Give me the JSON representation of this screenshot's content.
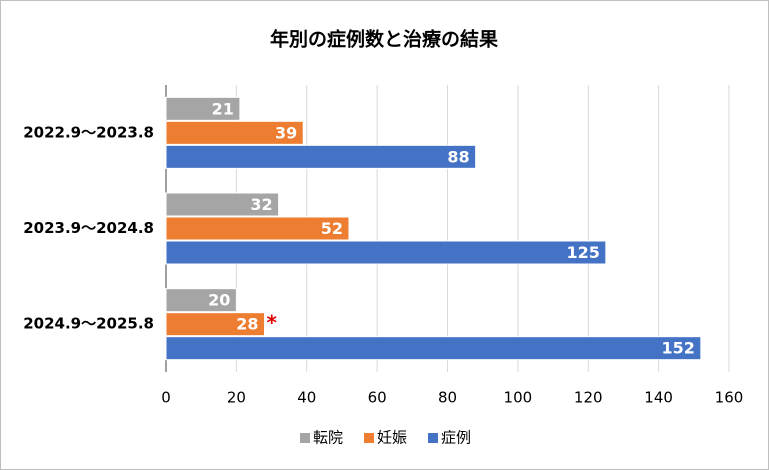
{
  "chart_data": {
    "type": "hbar",
    "title": "年別の症例数と治療の結果",
    "categories": [
      "2022.9～2023.8",
      "2023.9～2024.8",
      "2024.9～2025.8"
    ],
    "series": [
      {
        "name": "転院",
        "color": "#a5a5a5",
        "values": [
          21,
          32,
          20
        ]
      },
      {
        "name": "妊娠",
        "color": "#ed7d31",
        "values": [
          39,
          52,
          28
        ]
      },
      {
        "name": "症例",
        "color": "#4472c4",
        "values": [
          88,
          125,
          152
        ]
      }
    ],
    "xlim": [
      0,
      160
    ],
    "xticks": [
      0,
      20,
      40,
      60,
      80,
      100,
      120,
      140,
      160
    ],
    "grid": true,
    "legend": "bottom",
    "annotations": [
      {
        "text": "*",
        "color": "#e00000"
      }
    ]
  }
}
